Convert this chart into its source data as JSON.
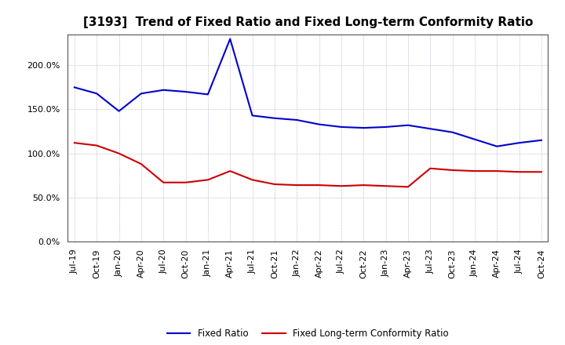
{
  "title": "[3193]  Trend of Fixed Ratio and Fixed Long-term Conformity Ratio",
  "x_labels": [
    "Jul-19",
    "Oct-19",
    "Jan-20",
    "Apr-20",
    "Jul-20",
    "Oct-20",
    "Jan-21",
    "Apr-21",
    "Jul-21",
    "Oct-21",
    "Jan-22",
    "Apr-22",
    "Jul-22",
    "Oct-22",
    "Jan-23",
    "Apr-23",
    "Jul-23",
    "Oct-23",
    "Jan-24",
    "Apr-24",
    "Jul-24",
    "Oct-24"
  ],
  "fixed_ratio": [
    175,
    168,
    148,
    168,
    172,
    170,
    167,
    230,
    143,
    140,
    138,
    133,
    130,
    129,
    130,
    132,
    128,
    124,
    116,
    108,
    112,
    115
  ],
  "fixed_lt_ratio": [
    112,
    109,
    100,
    88,
    67,
    67,
    70,
    80,
    70,
    65,
    64,
    64,
    63,
    64,
    63,
    62,
    83,
    81,
    80,
    80,
    79,
    79
  ],
  "ylim": [
    0,
    235
  ],
  "yticks": [
    0,
    50,
    100,
    150,
    200
  ],
  "blue_color": "#0000cc",
  "red_color": "#cc0000",
  "background_color": "#ffffff",
  "grid_color": "#8888aa",
  "title_fontsize": 11,
  "tick_fontsize": 8,
  "legend_fixed_ratio": "Fixed Ratio",
  "legend_fixed_lt_ratio": "Fixed Long-term Conformity Ratio"
}
